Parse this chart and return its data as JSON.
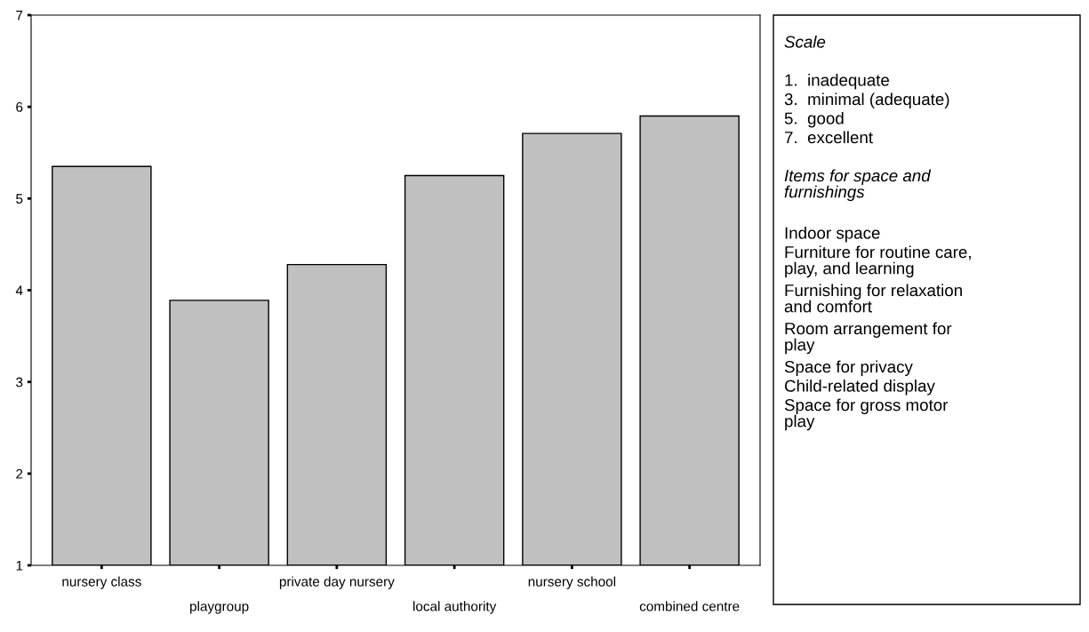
{
  "chart_data": {
    "type": "bar",
    "categories": [
      "nursery class",
      "playgroup",
      "private day nursery",
      "local authority",
      "nursery school",
      "combined centre"
    ],
    "values": [
      5.35,
      3.89,
      4.28,
      5.25,
      5.71,
      5.9
    ],
    "color": "#c0c0c0",
    "ylim": [
      1,
      7
    ],
    "yticks": [
      1,
      2,
      3,
      4,
      5,
      6,
      7
    ],
    "grid": false,
    "annotations": [
      "Scale",
      "1.  inadequate",
      "3.  minimal (adequate)",
      "5.  good",
      "7.  excellent",
      "Items for space and\nfurnishings",
      "Indoor space",
      "Furniture for routine care,\nplay, and learning",
      "Furnishing for relaxation\nand comfort",
      "Room arrangement for\nplay",
      "Space for privacy",
      "Child-related display",
      "Space for gross motor\nplay"
    ]
  }
}
